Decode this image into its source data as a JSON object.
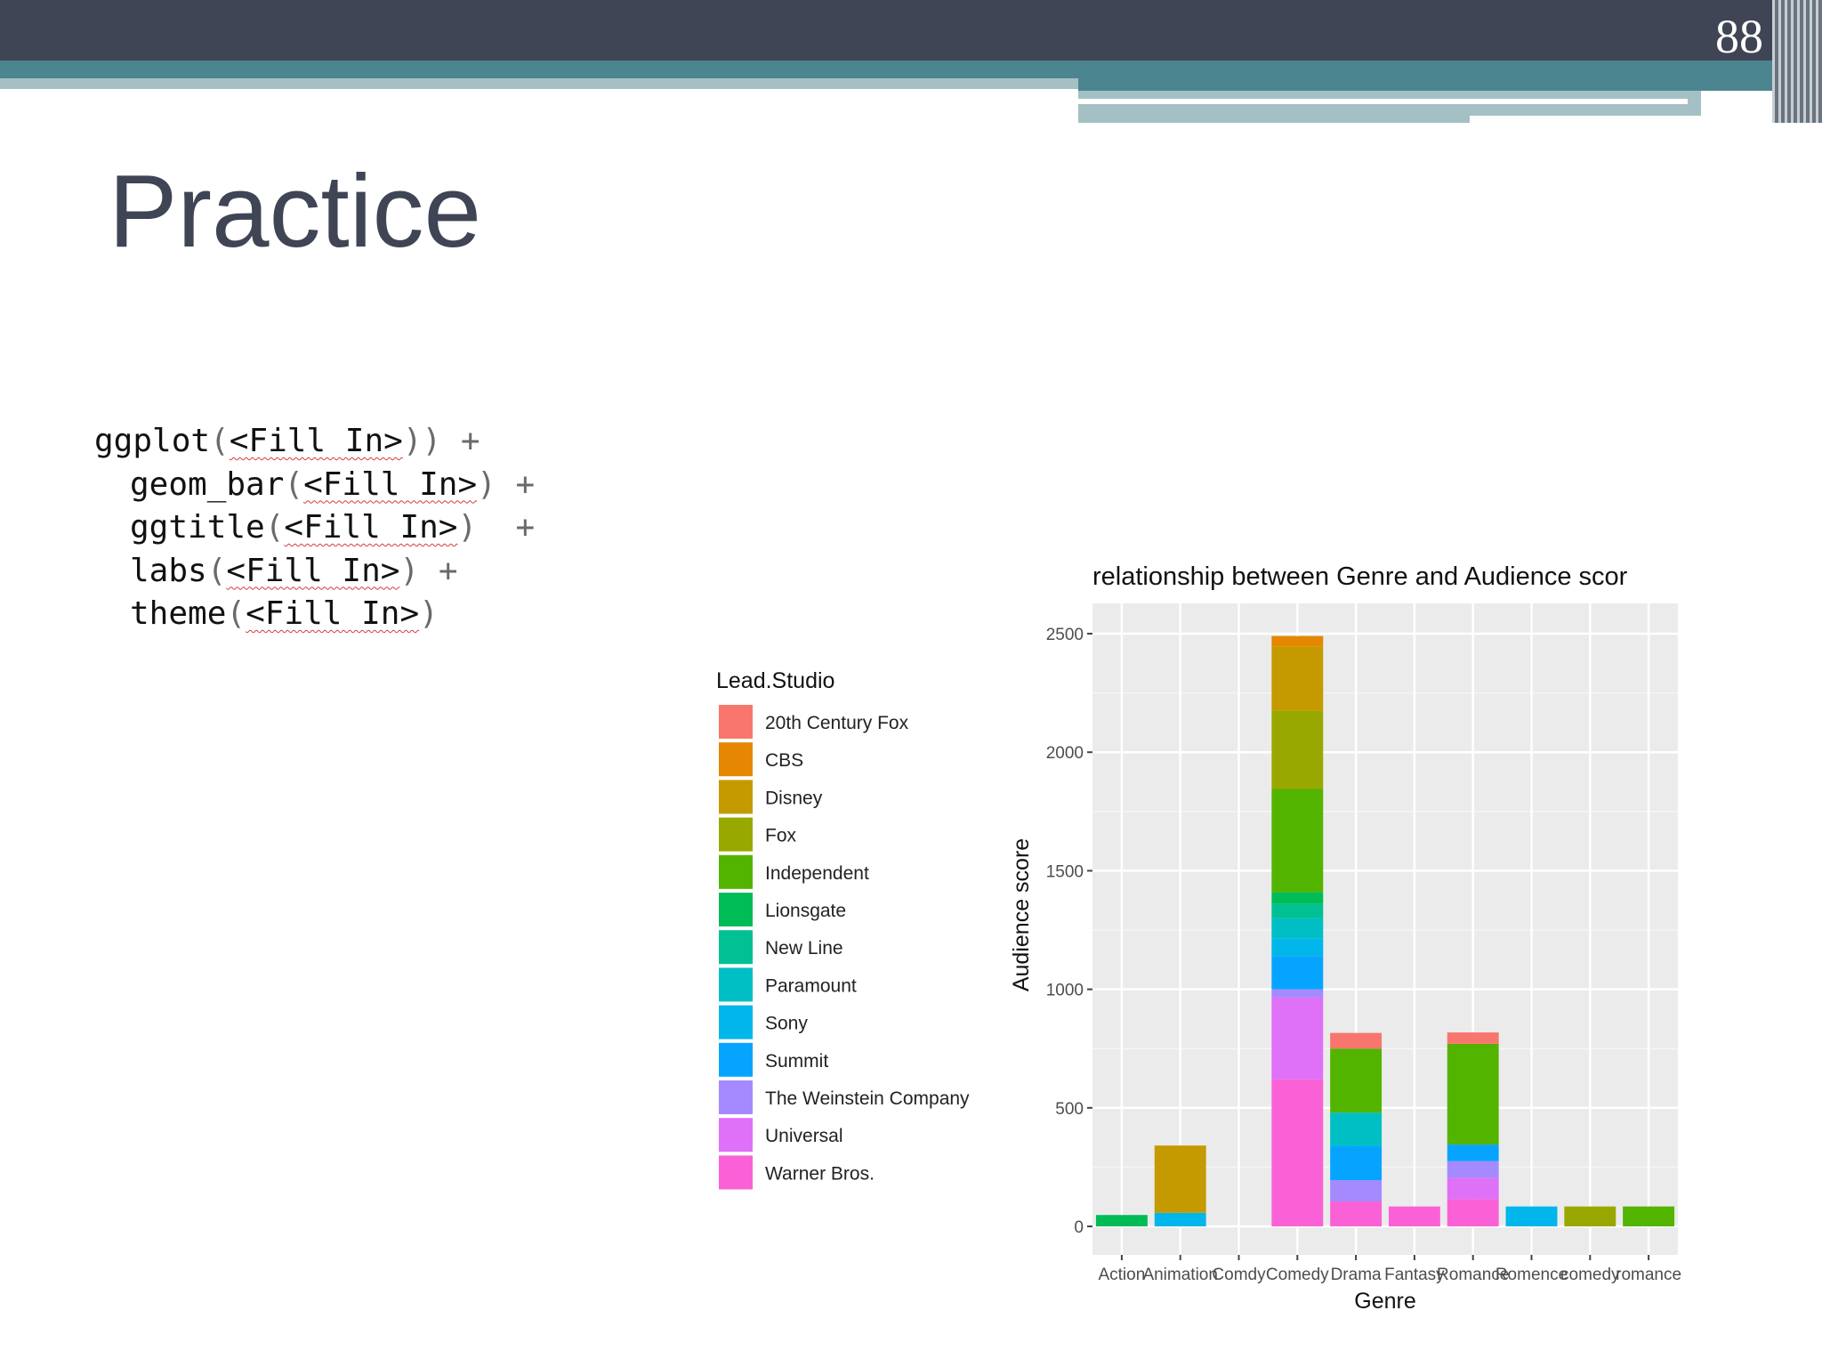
{
  "slide": {
    "page_number": "88",
    "title": "Practice"
  },
  "code": {
    "lines": [
      {
        "func": "ggplot",
        "open": "(",
        "arg": "<Fill In>",
        "close": "))",
        "plus": " +",
        "indent": false
      },
      {
        "func": "geom_bar",
        "open": "(",
        "arg": "<Fill In>",
        "close": ")",
        "plus": " +",
        "indent": true
      },
      {
        "func": "ggtitle",
        "open": "(",
        "arg": "<Fill In>",
        "close": ")",
        "plus": "  +",
        "indent": true
      },
      {
        "func": "labs",
        "open": "(",
        "arg": "<Fill In>",
        "close": ")",
        "plus": " +",
        "indent": true
      },
      {
        "func": "theme",
        "open": "(",
        "arg": "<Fill In>",
        "close": ")",
        "plus": "",
        "indent": true
      }
    ]
  },
  "chart_data": {
    "type": "bar",
    "stacked": true,
    "title": "relationship between Genre and Audience scor",
    "xlabel": "Genre",
    "ylabel": "Audience score",
    "ylim": [
      0,
      2500
    ],
    "yticks": [
      0,
      500,
      1000,
      1500,
      2000,
      2500
    ],
    "grid": true,
    "legend": {
      "title": "Lead.Studio",
      "position": "left"
    },
    "categories": [
      "Action",
      "Animation",
      "Comdy",
      "Comedy",
      "Drama",
      "Fantasy",
      "Romance",
      "Romence",
      "comedy",
      "romance"
    ],
    "series": [
      {
        "name": "20th Century Fox",
        "color": "#f8766d",
        "values": [
          0,
          0,
          0,
          0,
          66,
          0,
          48,
          0,
          0,
          0
        ]
      },
      {
        "name": "CBS",
        "color": "#e58700",
        "values": [
          0,
          0,
          0,
          45,
          0,
          0,
          0,
          0,
          0,
          0
        ]
      },
      {
        "name": "Disney",
        "color": "#c49a00",
        "values": [
          0,
          284,
          0,
          270,
          0,
          0,
          0,
          0,
          0,
          0
        ]
      },
      {
        "name": "Fox",
        "color": "#99a800",
        "values": [
          0,
          0,
          0,
          330,
          0,
          0,
          0,
          0,
          84,
          0
        ]
      },
      {
        "name": "Independent",
        "color": "#53b400",
        "values": [
          0,
          0,
          0,
          435,
          270,
          0,
          425,
          0,
          0,
          84
        ]
      },
      {
        "name": "Lionsgate",
        "color": "#00bc56",
        "values": [
          48,
          0,
          0,
          50,
          0,
          0,
          0,
          0,
          0,
          0
        ]
      },
      {
        "name": "New Line",
        "color": "#00c094",
        "values": [
          0,
          0,
          0,
          60,
          0,
          0,
          0,
          0,
          0,
          0
        ]
      },
      {
        "name": "Paramount",
        "color": "#00bfc4",
        "values": [
          0,
          0,
          0,
          85,
          140,
          0,
          0,
          0,
          0,
          0
        ]
      },
      {
        "name": "Sony",
        "color": "#00b6eb",
        "values": [
          0,
          57,
          0,
          75,
          0,
          0,
          0,
          84,
          0,
          0
        ]
      },
      {
        "name": "Summit",
        "color": "#06a4ff",
        "values": [
          0,
          0,
          0,
          140,
          145,
          0,
          70,
          0,
          0,
          0
        ]
      },
      {
        "name": "The Weinstein Company",
        "color": "#a58aff",
        "values": [
          0,
          0,
          0,
          35,
          90,
          0,
          70,
          0,
          0,
          0
        ]
      },
      {
        "name": "Universal",
        "color": "#df70f8",
        "values": [
          0,
          0,
          0,
          345,
          0,
          0,
          90,
          0,
          0,
          0
        ]
      },
      {
        "name": "Warner Bros.",
        "color": "#fb61d7",
        "values": [
          0,
          0,
          0,
          620,
          105,
          84,
          115,
          0,
          0,
          0
        ]
      }
    ]
  }
}
